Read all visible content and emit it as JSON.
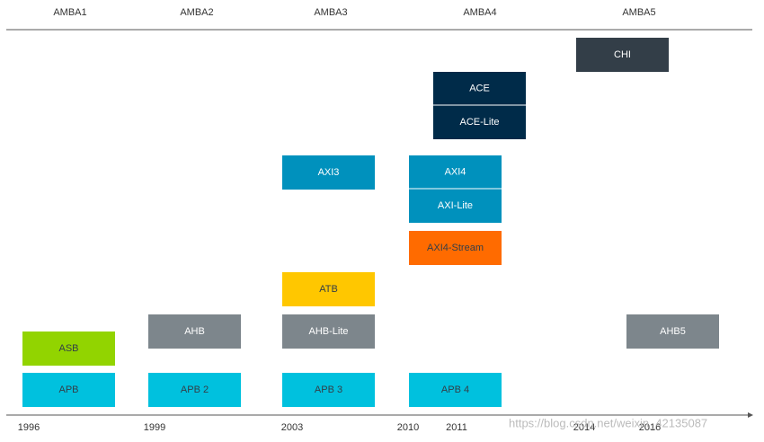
{
  "generations": [
    "AMBA1",
    "AMBA2",
    "AMBA3",
    "AMBA4",
    "AMBA5"
  ],
  "boxes": [
    "ASB",
    "APB",
    "AHB",
    "APB 2",
    "AXI3",
    "ATB",
    "AHB-Lite",
    "APB 3",
    "ACE",
    "ACE-Lite",
    "AXI4",
    "AXI-Lite",
    "AXI4-Stream",
    "APB 4",
    "CHI",
    "AHB5"
  ],
  "years": [
    "1996",
    "1999",
    "2003",
    "2010",
    "2011",
    "2014",
    "2016"
  ],
  "watermark": "https://blog.csdn.net/weixin_42135087"
}
